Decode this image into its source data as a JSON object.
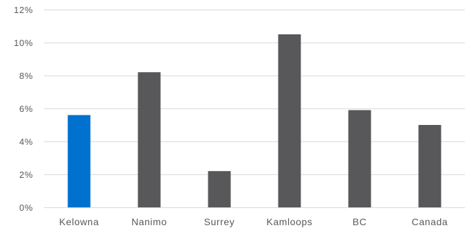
{
  "chart_data": {
    "type": "bar",
    "title": "",
    "xlabel": "",
    "ylabel": "",
    "categories": [
      "Kelowna",
      "Nanimo",
      "Surrey",
      "Kamloops",
      "BC",
      "Canada"
    ],
    "values": [
      5.6,
      8.2,
      2.2,
      10.5,
      5.9,
      5.0
    ],
    "highlight_index": 0,
    "ylim": [
      0,
      12
    ],
    "yticks": [
      0,
      2,
      4,
      6,
      8,
      10,
      12
    ],
    "ytick_labels": [
      "0%",
      "2%",
      "4%",
      "6%",
      "8%",
      "10%",
      "12%"
    ],
    "grid": true,
    "legend": "none",
    "colors": {
      "bar": "#58585b",
      "highlight": "#0071ce",
      "grid": "#d9d9d9",
      "text": "#595959"
    }
  }
}
